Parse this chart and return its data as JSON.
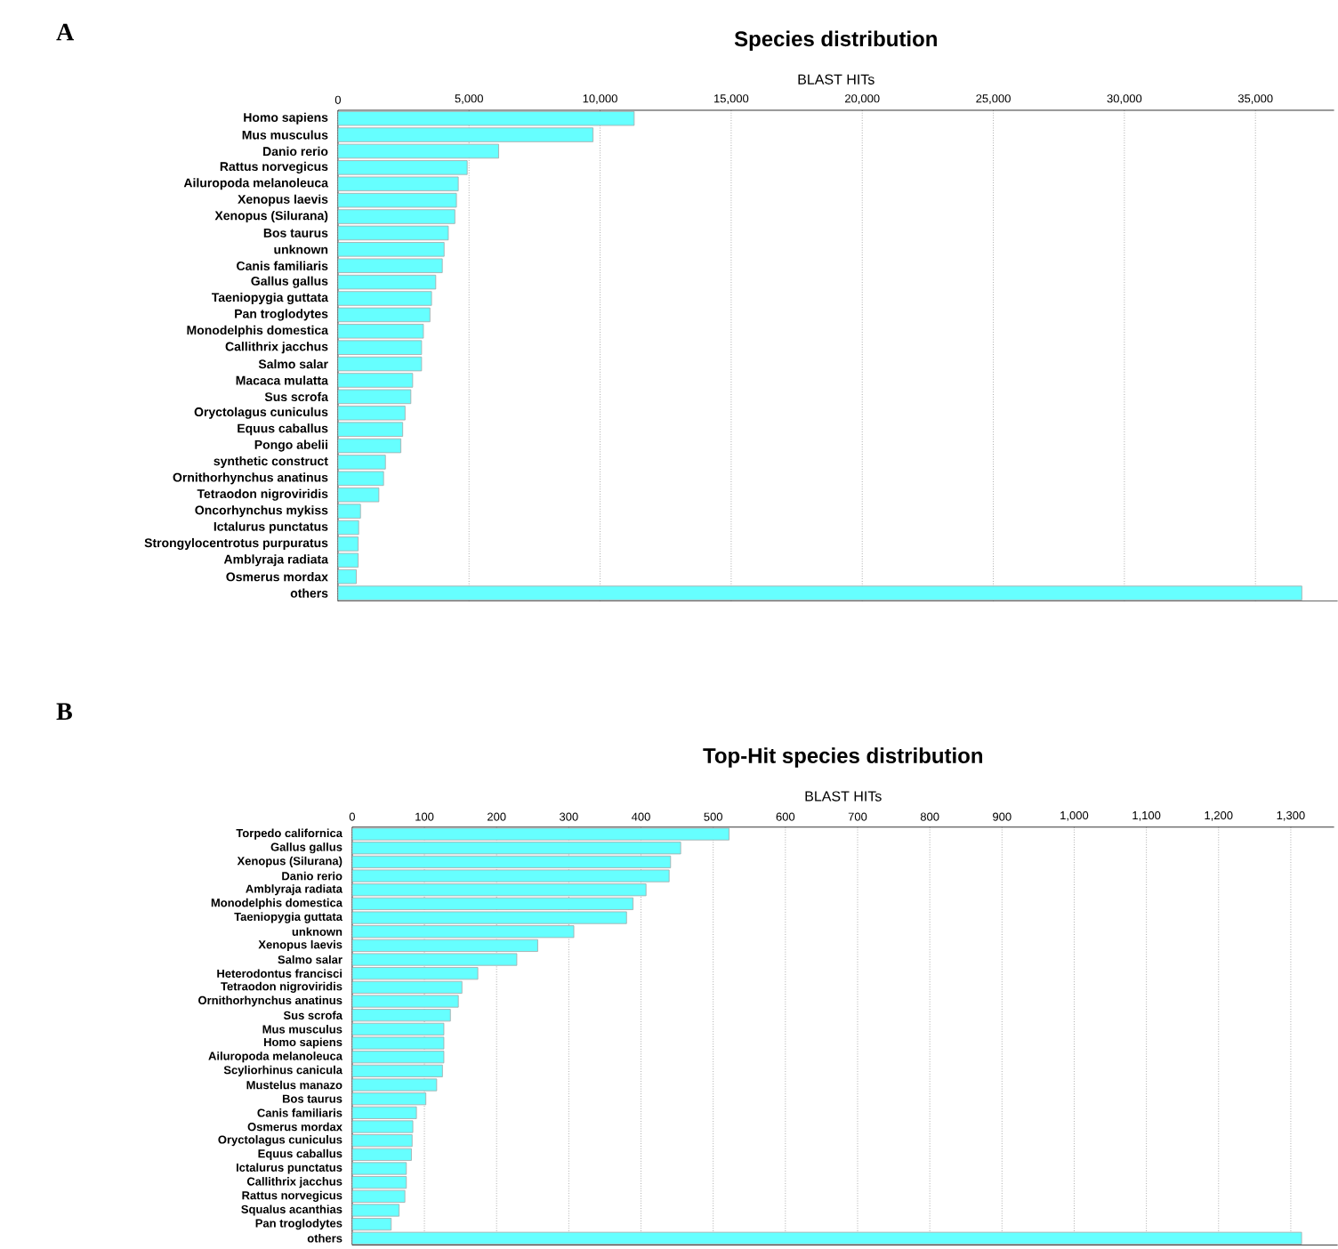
{
  "chart_data": [
    {
      "type": "bar",
      "orientation": "horizontal",
      "title": "Species distribution",
      "xlabel": "BLAST HITs",
      "annotations": [
        "A"
      ],
      "color": "#66ffff",
      "grid": "x",
      "categories": [
        "Homo sapiens",
        "Mus musculus",
        "Danio rerio",
        "Rattus norvegicus",
        "Ailuropoda melanoleuca",
        "Xenopus laevis",
        "Xenopus (Silurana)",
        "Bos taurus",
        "unknown",
        "Canis familiaris",
        "Gallus gallus",
        "Taeniopygia guttata",
        "Pan troglodytes",
        "Monodelphis domestica",
        "Callithrix jacchus",
        "Salmo salar",
        "Macaca mulatta",
        "Sus scrofa",
        "Oryctolagus cuniculus",
        "Equus caballus",
        "Pongo abelii",
        "synthetic construct",
        "Ornithorhynchus anatinus",
        "Tetraodon nigroviridis",
        "Oncorhynchus mykiss",
        "Ictalurus punctatus",
        "Strongylocentrotus purpuratus",
        "Amblyraja radiata",
        "Osmerus mordax",
        "others"
      ],
      "values": [
        11300,
        9730,
        6130,
        4930,
        4590,
        4520,
        4460,
        4210,
        4050,
        3980,
        3730,
        3570,
        3510,
        3260,
        3190,
        3190,
        2850,
        2780,
        2560,
        2470,
        2400,
        1810,
        1740,
        1560,
        860,
        790,
        770,
        770,
        700,
        36770
      ],
      "xlim": [
        0,
        38000
      ],
      "xticks": [
        0,
        {
          "value": 5000,
          "label": "5,000"
        },
        {
          "value": 10000,
          "label": "10,000"
        },
        {
          "value": 15000,
          "label": "15,000"
        },
        {
          "value": 20000,
          "label": "20,000"
        },
        {
          "value": 25000,
          "label": "25,000"
        },
        {
          "value": 30000,
          "label": "30,000"
        },
        {
          "value": 35000,
          "label": "35,000"
        }
      ]
    },
    {
      "type": "bar",
      "orientation": "horizontal",
      "title": "Top-Hit species distribution",
      "xlabel": "BLAST HITs",
      "annotations": [
        "B"
      ],
      "color": "#66ffff",
      "grid": "x",
      "categories": [
        "Torpedo californica",
        "Gallus gallus",
        "Xenopus (Silurana)",
        "Danio rerio",
        "Amblyraja radiata",
        "Monodelphis domestica",
        "Taeniopygia guttata",
        "unknown",
        "Xenopus laevis",
        "Salmo salar",
        "Heterodontus francisci",
        "Tetraodon nigroviridis",
        "Ornithorhynchus anatinus",
        "Sus scrofa",
        "Mus musculus",
        "Homo sapiens",
        "Ailuropoda melanoleuca",
        "Scyliorhinus canicula",
        "Mustelus manazo",
        "Bos taurus",
        "Canis familiaris",
        "Osmerus mordax",
        "Oryctolagus cuniculus",
        "Equus caballus",
        "Ictalurus punctatus",
        "Callithrix jacchus",
        "Rattus norvegicus",
        "Squalus acanthias",
        "Pan troglodytes",
        "others"
      ],
      "values": [
        522,
        455,
        441,
        439,
        407,
        389,
        380,
        307,
        257,
        228,
        174,
        152,
        147,
        136,
        127,
        127,
        127,
        125,
        117,
        102,
        89,
        84,
        83,
        82,
        75,
        75,
        73,
        65,
        54,
        1315
      ],
      "xlim": [
        0,
        1360
      ],
      "xticks": [
        0,
        100,
        200,
        300,
        400,
        500,
        600,
        700,
        800,
        900,
        {
          "value": 1000,
          "label": "1,000"
        },
        {
          "value": 1100,
          "label": "1,100"
        },
        {
          "value": 1200,
          "label": "1,200"
        },
        {
          "value": 1300,
          "label": "1,300"
        }
      ]
    }
  ]
}
